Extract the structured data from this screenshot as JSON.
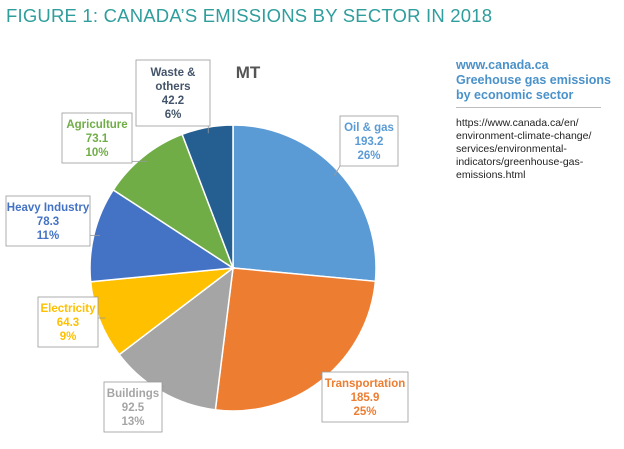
{
  "figure_title": "FIGURE 1: CANADA’S EMISSIONS BY SECTOR IN 2018",
  "source": {
    "site": "www.canada.ca",
    "description": "Greehouse gas emissions by economic sector",
    "url_lines": [
      "https://www.canada.ca/en/",
      "environment-climate-change/",
      "services/environmental-",
      "indicators/greenhouse-gas-",
      "emissions.html"
    ]
  },
  "chart_data": {
    "type": "pie",
    "title": "MT",
    "unit": "MT",
    "slices": [
      {
        "label": "Oil & gas",
        "label_lines": [
          "Oil & gas"
        ],
        "value": 193.2,
        "value_text": "193.2",
        "percent": "26%",
        "color": "#5b9bd5"
      },
      {
        "label": "Transportation",
        "label_lines": [
          "Transportation"
        ],
        "value": 185.9,
        "value_text": "185.9",
        "percent": "25%",
        "color": "#ed7d31"
      },
      {
        "label": "Buildings",
        "label_lines": [
          "Buildings"
        ],
        "value": 92.5,
        "value_text": "92.5",
        "percent": "13%",
        "color": "#a5a5a5"
      },
      {
        "label": "Electricity",
        "label_lines": [
          "Electricity"
        ],
        "value": 64.3,
        "value_text": "64.3",
        "percent": "9%",
        "color": "#ffc000"
      },
      {
        "label": "Heavy Industry",
        "label_lines": [
          "Heavy Industry"
        ],
        "value": 78.3,
        "value_text": "78.3",
        "percent": "11%",
        "color": "#4472c4"
      },
      {
        "label": "Agriculture",
        "label_lines": [
          "Agriculture"
        ],
        "value": 73.1,
        "value_text": "73.1",
        "percent": "10%",
        "color": "#70ad47"
      },
      {
        "label": "Waste & others",
        "label_lines": [
          "Waste &",
          "others"
        ],
        "value": 42.2,
        "value_text": "42.2",
        "percent": "6%",
        "color": "#255e91"
      }
    ],
    "label_colors": {
      "Oil & gas": "#5b9bd5",
      "Transportation": "#ed7d31",
      "Buildings": "#a5a5a5",
      "Electricity": "#ffc000",
      "Heavy Industry": "#4472c4",
      "Agriculture": "#70ad47",
      "Waste & others": "#44546a"
    },
    "start_angle": "12 o'clock",
    "direction": "clockwise",
    "legend": "none (callout labels)"
  }
}
